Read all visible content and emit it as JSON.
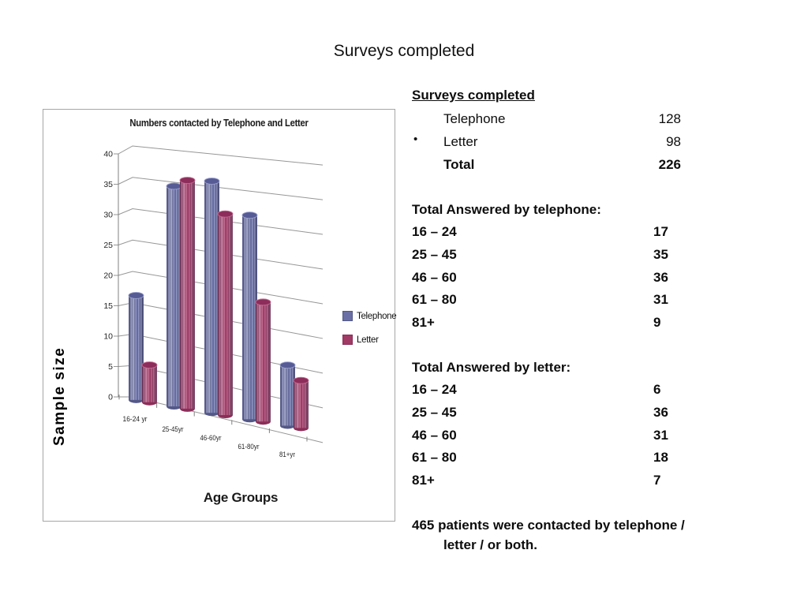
{
  "slide": {
    "title": "Surveys completed"
  },
  "chart": {
    "title": "Numbers contacted by Telephone and Letter",
    "y_axis_label": "Sample size",
    "x_axis_label": "Age Groups"
  },
  "chart_data": {
    "type": "bar",
    "style": "3d-cylinder",
    "categories": [
      "16-24 yr",
      "25-45yr",
      "46-60yr",
      "61-80yr",
      "81+yr"
    ],
    "series": [
      {
        "name": "Telephone",
        "values": [
          17,
          35,
          36,
          31,
          9
        ],
        "color": "#6a6fa5"
      },
      {
        "name": "Letter",
        "values": [
          6,
          36,
          31,
          18,
          7
        ],
        "color": "#a13a64"
      }
    ],
    "title": "Numbers contacted by Telephone and Letter",
    "xlabel": "Age Groups",
    "ylabel": "Sample size",
    "ylim": [
      0,
      40
    ],
    "ytick_step": 5,
    "grid": true,
    "legend_position": "right"
  },
  "panel": {
    "header": "Surveys completed",
    "rows": [
      {
        "bullet": "",
        "label": "Telephone",
        "value": "128",
        "bold": false
      },
      {
        "bullet": "•",
        "label": "Letter",
        "value": "98",
        "bold": false
      },
      {
        "bullet": "",
        "label": "Total",
        "value": "226",
        "bold": true
      }
    ],
    "sections": [
      {
        "heading": "Total Answered by telephone:",
        "rows": [
          [
            "16 – 24",
            "17"
          ],
          [
            "25 – 45",
            "35"
          ],
          [
            "46 – 60",
            "36"
          ],
          [
            "61 – 80",
            "31"
          ],
          [
            "81+",
            "9"
          ]
        ]
      },
      {
        "heading": "Total Answered by letter:",
        "rows": [
          [
            "16 – 24",
            "6"
          ],
          [
            "25 – 45",
            "36"
          ],
          [
            "46 – 60",
            "31"
          ],
          [
            "61 – 80",
            "18"
          ],
          [
            "81+",
            "7"
          ]
        ]
      }
    ],
    "footer_line1": "465 patients were contacted by telephone /",
    "footer_line2": "letter / or both."
  }
}
